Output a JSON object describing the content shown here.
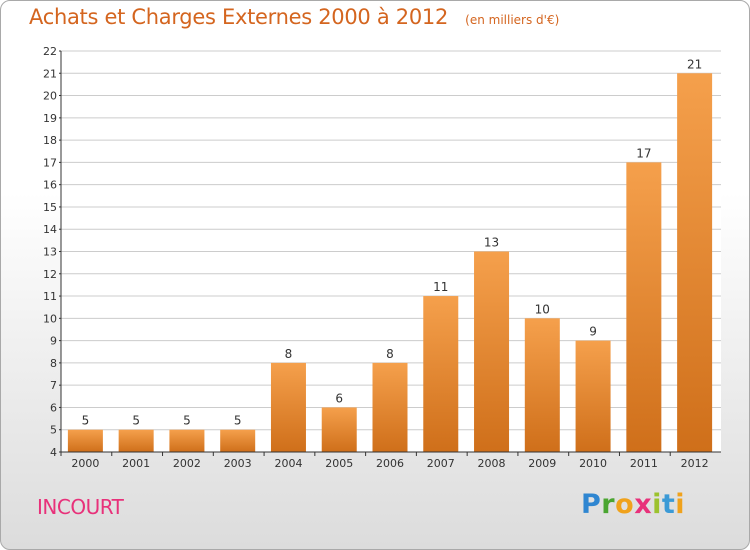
{
  "header": {
    "title": "Achats et Charges Externes 2000 à 2012",
    "unit_note": "(en milliers d'€)"
  },
  "footer": {
    "town": "INCOURT",
    "logo_text": "Proxiti"
  },
  "colors": {
    "title": "#d4651f",
    "town": "#e8317a",
    "bar_light": "#f5a04c",
    "bar_dark": "#cf6f1a",
    "grid": "#cccccc"
  },
  "chart_data": {
    "type": "bar",
    "title": "Achats et Charges Externes 2000 à 2012",
    "subtitle": "(en milliers d'€)",
    "categories": [
      "2000",
      "2001",
      "2002",
      "2003",
      "2004",
      "2005",
      "2006",
      "2007",
      "2008",
      "2009",
      "2010",
      "2011",
      "2012"
    ],
    "values": [
      5,
      5,
      5,
      5,
      8,
      6,
      8,
      11,
      13,
      10,
      9,
      17,
      21
    ],
    "data_labels": [
      "5",
      "5",
      "5",
      "5",
      "8",
      "6",
      "8",
      "11",
      "13",
      "10",
      "9",
      "17",
      "21"
    ],
    "y_ticks": [
      4,
      5,
      6,
      7,
      8,
      9,
      10,
      11,
      12,
      13,
      14,
      15,
      16,
      17,
      18,
      19,
      20,
      21,
      22
    ],
    "ylim": [
      4,
      22
    ],
    "grid": true,
    "xlabel": "",
    "ylabel": ""
  }
}
